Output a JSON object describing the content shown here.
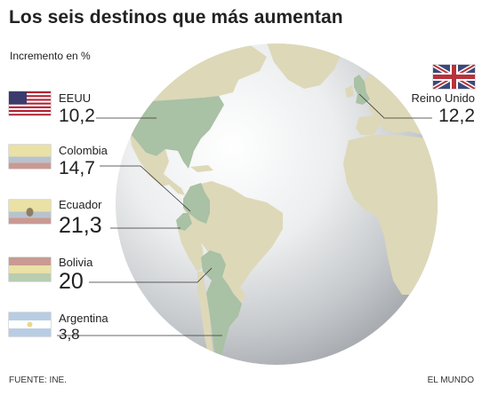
{
  "title": "Los seis destinos que más aumentan",
  "subtitle": "Incremento en %",
  "source": "FUENTE: INE.",
  "credit": "EL MUNDO",
  "colors": {
    "highlight": "#a9c1a4",
    "land": "#ddd8b8",
    "ocean_light": "#ffffff",
    "ocean_dark": "#a9adb2",
    "leader": "#333333"
  },
  "chart_data": {
    "type": "table",
    "title": "Los seis destinos que más aumentan",
    "subtitle": "Incremento en %",
    "categories": [
      "EEUU",
      "Colombia",
      "Ecuador",
      "Bolivia",
      "Argentina",
      "Reino Unido"
    ],
    "values": [
      10.2,
      14.7,
      21.3,
      20,
      3.8,
      12.2
    ],
    "labels": [
      "10,2",
      "14,7",
      "21,3",
      "20",
      "3,8",
      "12,2"
    ]
  },
  "flags": [
    {
      "id": "eeuu",
      "icon": "usa-flag-icon"
    },
    {
      "id": "colombia",
      "icon": "colombia-flag-icon"
    },
    {
      "id": "ecuador",
      "icon": "ecuador-flag-icon"
    },
    {
      "id": "bolivia",
      "icon": "bolivia-flag-icon"
    },
    {
      "id": "argentina",
      "icon": "argentina-flag-icon"
    },
    {
      "id": "reino_unido",
      "icon": "uk-flag-icon"
    }
  ]
}
